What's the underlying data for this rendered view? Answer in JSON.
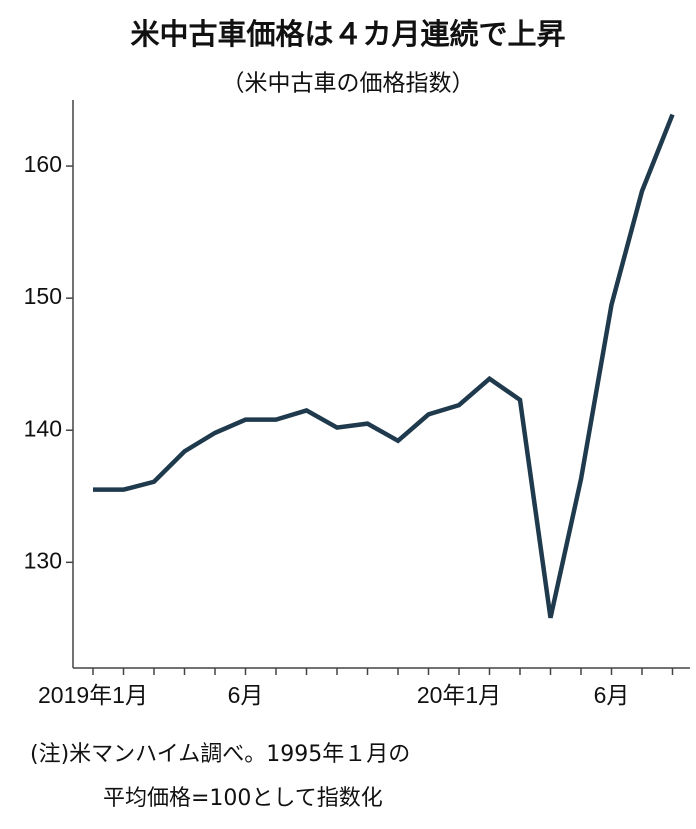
{
  "chart_data": {
    "type": "line",
    "title": "米中古車価格は４カ月連続で上昇",
    "subtitle": "（米中古車の価格指数）",
    "categories": [
      "2019年1月",
      null,
      null,
      null,
      null,
      "6月",
      null,
      null,
      null,
      null,
      null,
      null,
      "20年1月",
      null,
      null,
      null,
      null,
      "6月",
      null,
      null
    ],
    "series": [
      {
        "color": "#1f3a4d",
        "values": [
          135.5,
          135.5,
          136.1,
          138.4,
          139.8,
          140.8,
          140.8,
          141.5,
          140.2,
          140.5,
          139.2,
          141.2,
          141.9,
          143.9,
          142.3,
          125.8,
          136.3,
          149.5,
          158.1,
          163.9
        ]
      }
    ],
    "ylim": [
      122,
      165
    ],
    "yticks": [
      130,
      140,
      150,
      160
    ],
    "notes": [
      "(注)米マンハイム調べ。1995年１月の",
      "平均価格=100として指数化"
    ]
  }
}
